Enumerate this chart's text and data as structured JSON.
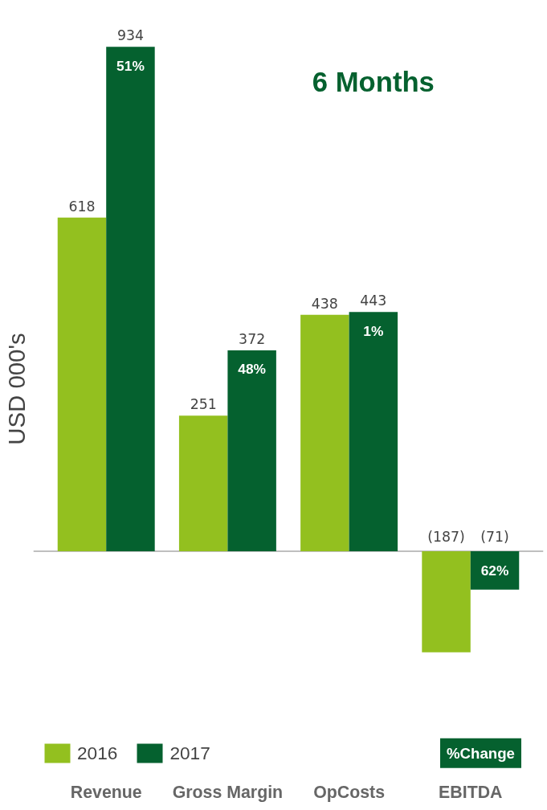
{
  "chart_data": {
    "type": "bar",
    "title": "6 Months",
    "ylabel": "USD 000's",
    "categories": [
      "Revenue",
      "Gross Margin",
      "OpCosts",
      "EBITDA"
    ],
    "series": [
      {
        "name": "2016",
        "color": "#93c01f",
        "values": [
          618,
          251,
          438,
          -187
        ],
        "value_labels": [
          "618",
          "251",
          "438",
          "(187)"
        ]
      },
      {
        "name": "2017",
        "color": "#05612f",
        "values": [
          934,
          372,
          443,
          -71
        ],
        "value_labels": [
          "934",
          "372",
          "443",
          "(71)"
        ]
      }
    ],
    "annotations": [
      "51%",
      "48%",
      "1%",
      "62%",
      "%Change"
    ],
    "tick_labels": "x",
    "legend": "bottom",
    "grid": false
  }
}
